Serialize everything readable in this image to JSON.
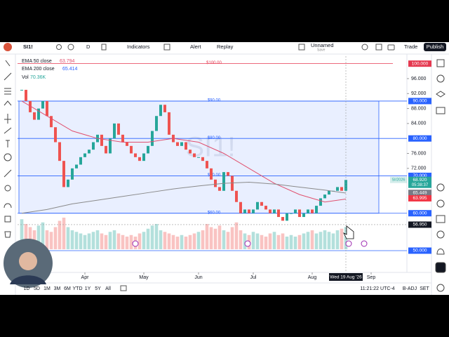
{
  "toolbar": {
    "symbol": "SI1!",
    "interval": "D",
    "indicators": "Indicators",
    "alert": "Alert",
    "replay": "Replay",
    "layout": "Unnamed",
    "save": "Save",
    "trade": "Trade",
    "publish": "Publish"
  },
  "legend": {
    "ema50": {
      "name": "EMA 50 close",
      "value": "63.794"
    },
    "ema200": {
      "name": "EMA 200 close",
      "value": "65.414"
    },
    "vol": {
      "name": "Vol",
      "value": "70.36K"
    }
  },
  "chart_data": {
    "type": "candlestick",
    "watermark": "SI1!",
    "contract": "SI/2026",
    "xlim": [
      -1,
      91.5
    ],
    "ylim": [
      50,
      102
    ],
    "xticks": [
      {
        "value": 15,
        "label": "Apr"
      },
      {
        "value": 29,
        "label": "May"
      },
      {
        "value": 42,
        "label": "Jun"
      },
      {
        "value": 55,
        "label": "Jul"
      },
      {
        "value": 69,
        "label": "Aug"
      },
      {
        "value": 83,
        "label": "Sep"
      }
    ],
    "yticks": [
      {
        "value": 96,
        "label": "96.000"
      },
      {
        "value": 92,
        "label": "92.000"
      },
      {
        "value": 88,
        "label": "88.000"
      },
      {
        "value": 84,
        "label": "84.000"
      },
      {
        "value": 76,
        "label": "76.000"
      },
      {
        "value": 72,
        "label": "72.000"
      }
    ],
    "closes": [
      93,
      90,
      87,
      85,
      88,
      90,
      86,
      83,
      79,
      74,
      67,
      69,
      72,
      73,
      75,
      76,
      77,
      79,
      81,
      78,
      76,
      80,
      84,
      81,
      79,
      78,
      76,
      75,
      74,
      76,
      78,
      82,
      86,
      89,
      87,
      81,
      79,
      78,
      79,
      77,
      76,
      75,
      75,
      74,
      72,
      69,
      67,
      66,
      71,
      70,
      66,
      63,
      60,
      61,
      60,
      61,
      63,
      62,
      61,
      60,
      61,
      59,
      58,
      60,
      60,
      61,
      59,
      60,
      61,
      60,
      62,
      64,
      65,
      66,
      66,
      67,
      66,
      68.92
    ],
    "volumes": [
      95,
      80,
      70,
      60,
      75,
      85,
      60,
      55,
      70,
      90,
      100,
      70,
      60,
      55,
      50,
      45,
      50,
      55,
      60,
      50,
      45,
      55,
      60,
      50,
      45,
      40,
      45,
      40,
      50,
      55,
      65,
      75,
      80,
      60,
      55,
      50,
      45,
      40,
      45,
      40,
      45,
      50,
      55,
      60,
      80,
      70,
      65,
      75,
      60,
      55,
      70,
      85,
      60,
      50,
      45,
      55,
      50,
      45,
      40,
      50,
      55,
      45,
      50,
      40,
      45,
      40,
      45,
      50,
      55,
      60,
      50,
      55,
      60,
      55,
      50,
      60,
      65,
      70.36
    ],
    "ema50": {
      "color": "#e0506e",
      "x": [
        0,
        6,
        12,
        18,
        24,
        30,
        36,
        42,
        48,
        54,
        60,
        66,
        72,
        77
      ],
      "values": [
        90,
        86,
        82,
        80,
        79,
        79,
        80,
        79,
        76,
        72,
        68,
        65,
        63,
        63.8
      ]
    },
    "ema200": {
      "color": "#8a8a8a",
      "x": [
        0,
        6,
        12,
        18,
        24,
        30,
        36,
        42,
        48,
        54,
        60,
        66,
        72,
        77
      ],
      "values": [
        60,
        61,
        62.5,
        63.5,
        64.5,
        65.5,
        66.5,
        67.3,
        68,
        68.3,
        67.8,
        67,
        66.2,
        65.4
      ]
    },
    "levels": [
      {
        "value": 100,
        "label": "$100.00",
        "axis_label": "100.000",
        "color": "#e53950"
      },
      {
        "value": 90,
        "label": "$90.00",
        "axis_label": "90.000",
        "color": "#2962ff"
      },
      {
        "value": 80,
        "label": "$80.00",
        "axis_label": "80.000",
        "color": "#2962ff"
      },
      {
        "value": 70,
        "label": "$70.00",
        "axis_label": "70.000",
        "color": "#2962ff"
      },
      {
        "value": 60,
        "label": "$60.00",
        "axis_label": "60.000",
        "color": "#2962ff"
      },
      {
        "value": 50,
        "label": "",
        "axis_label": "50.000",
        "color": "#2962ff"
      }
    ],
    "price_badges": [
      {
        "value": 68.92,
        "label": "68.920",
        "sub": "05:38:37",
        "color": "#26a69a"
      },
      {
        "value": 65.449,
        "label": "65.449",
        "color": "#787b86"
      },
      {
        "value": 63.995,
        "label": "63.995",
        "color": "#f23645"
      }
    ],
    "crosshair": {
      "price": {
        "value": 56.95,
        "label": "56.950"
      },
      "date": "Wed 19 Aug '26",
      "x": 77
    }
  },
  "bottombar": {
    "ranges": [
      "1D",
      "5D",
      "1M",
      "3M",
      "6M",
      "YTD",
      "1Y",
      "5Y",
      "All"
    ],
    "clock": "11:21:22 UTC-4",
    "adj": "B-ADJ",
    "set": "SET"
  }
}
